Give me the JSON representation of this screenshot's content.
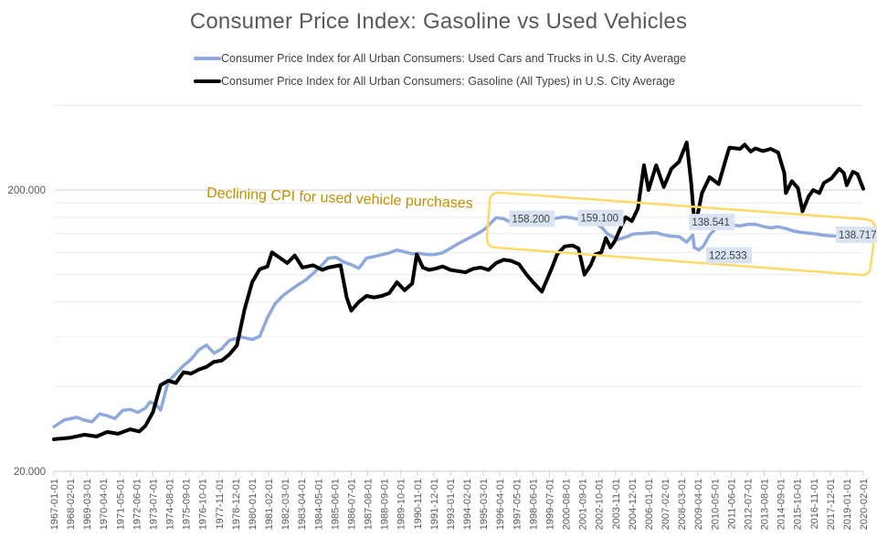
{
  "chart_data": {
    "type": "line",
    "title": "Consumer Price Index: Gasoline vs Used Vehicles",
    "xlabel": "",
    "ylabel": "",
    "yscale": "log",
    "ylim": [
      20,
      400
    ],
    "yticks": [
      {
        "value": 20,
        "label": "20.000"
      },
      {
        "value": 200,
        "label": "200.000"
      }
    ],
    "minor_gridlines": [
      40,
      60,
      80,
      100,
      120,
      140,
      160,
      180,
      400
    ],
    "xlim": [
      1967.0,
      2020.083
    ],
    "x_tick_labels": [
      "1967-01-01",
      "1968-02-01",
      "1969-03-01",
      "1970-04-01",
      "1971-05-01",
      "1972-06-01",
      "1973-07-01",
      "1974-08-01",
      "1975-09-01",
      "1976-10-01",
      "1977-11-01",
      "1978-12-01",
      "1980-01-01",
      "1981-02-01",
      "1982-03-01",
      "1983-04-01",
      "1984-05-01",
      "1985-06-01",
      "1986-07-01",
      "1987-08-01",
      "1988-09-01",
      "1989-10-01",
      "1990-11-01",
      "1991-12-01",
      "1993-01-01",
      "1994-02-01",
      "1995-03-01",
      "1996-04-01",
      "1997-05-01",
      "1998-06-01",
      "1999-07-01",
      "2000-08-01",
      "2001-09-01",
      "2002-10-01",
      "2003-11-01",
      "2004-12-01",
      "2006-01-01",
      "2007-02-01",
      "2008-03-01",
      "2009-04-01",
      "2010-05-01",
      "2011-06-01",
      "2012-07-01",
      "2013-08-01",
      "2014-09-01",
      "2015-10-01",
      "2016-11-01",
      "2017-12-01",
      "2019-01-01",
      "2020-02-01"
    ],
    "grid": true,
    "legend_position": "top",
    "series": [
      {
        "name": "Consumer Price Index for All Urban Consumers: Used Cars and Trucks in U.S. City Average",
        "color": "#8ea9db",
        "points": [
          [
            1967.0,
            28.8
          ],
          [
            1967.7,
            30.5
          ],
          [
            1968.5,
            31.1
          ],
          [
            1969.0,
            30.4
          ],
          [
            1969.5,
            30.0
          ],
          [
            1970.0,
            32.0
          ],
          [
            1970.5,
            31.5
          ],
          [
            1971.0,
            30.8
          ],
          [
            1971.5,
            32.9
          ],
          [
            1972.0,
            33.2
          ],
          [
            1972.5,
            32.4
          ],
          [
            1973.0,
            33.5
          ],
          [
            1973.3,
            35.3
          ],
          [
            1973.7,
            34.6
          ],
          [
            1974.0,
            33.0
          ],
          [
            1974.5,
            41.7
          ],
          [
            1975.0,
            44.5
          ],
          [
            1975.5,
            47.5
          ],
          [
            1976.0,
            50.0
          ],
          [
            1976.5,
            54.0
          ],
          [
            1977.0,
            56.2
          ],
          [
            1977.5,
            52.6
          ],
          [
            1978.0,
            54.5
          ],
          [
            1978.5,
            58.4
          ],
          [
            1979.3,
            60.0
          ],
          [
            1980.0,
            58.8
          ],
          [
            1980.5,
            60.4
          ],
          [
            1981.0,
            70.2
          ],
          [
            1981.5,
            78.8
          ],
          [
            1982.0,
            84.0
          ],
          [
            1982.5,
            88.1
          ],
          [
            1983.0,
            92.0
          ],
          [
            1983.5,
            95.6
          ],
          [
            1984.0,
            101.0
          ],
          [
            1984.5,
            107.0
          ],
          [
            1985.0,
            114.5
          ],
          [
            1985.5,
            115.3
          ],
          [
            1986.0,
            111.0
          ],
          [
            1986.5,
            108.6
          ],
          [
            1987.0,
            105.3
          ],
          [
            1987.5,
            114.5
          ],
          [
            1988.0,
            116.0
          ],
          [
            1988.5,
            117.8
          ],
          [
            1989.0,
            119.5
          ],
          [
            1989.5,
            122.4
          ],
          [
            1990.0,
            120.5
          ],
          [
            1990.5,
            118.6
          ],
          [
            1991.0,
            119.0
          ],
          [
            1991.5,
            117.8
          ],
          [
            1992.0,
            118.0
          ],
          [
            1992.5,
            119.7
          ],
          [
            1993.0,
            124.0
          ],
          [
            1993.5,
            128.8
          ],
          [
            1994.0,
            133.0
          ],
          [
            1994.5,
            137.4
          ],
          [
            1995.0,
            142.0
          ],
          [
            1995.3,
            145.9
          ],
          [
            1996.0,
            159.3
          ],
          [
            1996.5,
            158.2
          ],
          [
            1997.0,
            153.0
          ],
          [
            1997.5,
            151.1
          ],
          [
            1998.0,
            152.0
          ],
          [
            1998.5,
            153.3
          ],
          [
            1999.0,
            155.0
          ],
          [
            1999.5,
            157.0
          ],
          [
            2000.0,
            159.0
          ],
          [
            2000.5,
            160.4
          ],
          [
            2001.0,
            159.1
          ],
          [
            2001.5,
            157.0
          ],
          [
            2002.0,
            155.0
          ],
          [
            2002.5,
            153.3
          ],
          [
            2003.0,
            146.0
          ],
          [
            2003.3,
            139.6
          ],
          [
            2004.0,
            133.4
          ],
          [
            2004.5,
            136.0
          ],
          [
            2005.0,
            139.6
          ],
          [
            2005.5,
            140.0
          ],
          [
            2006.0,
            140.6
          ],
          [
            2006.5,
            141.0
          ],
          [
            2007.0,
            138.5
          ],
          [
            2007.5,
            137.0
          ],
          [
            2008.0,
            136.5
          ],
          [
            2008.5,
            130.5
          ],
          [
            2008.9,
            138.5
          ],
          [
            2009.0,
            124.9
          ],
          [
            2009.3,
            122.5
          ],
          [
            2009.6,
            126.3
          ],
          [
            2010.0,
            138.5
          ],
          [
            2010.5,
            148.0
          ],
          [
            2011.0,
            152.4
          ],
          [
            2011.5,
            150.0
          ],
          [
            2012.0,
            149.1
          ],
          [
            2012.5,
            151.0
          ],
          [
            2013.0,
            151.1
          ],
          [
            2013.5,
            148.5
          ],
          [
            2014.0,
            146.6
          ],
          [
            2014.5,
            148.0
          ],
          [
            2015.0,
            145.9
          ],
          [
            2015.5,
            143.0
          ],
          [
            2016.0,
            141.4
          ],
          [
            2016.5,
            140.5
          ],
          [
            2017.0,
            139.6
          ],
          [
            2017.5,
            138.0
          ],
          [
            2018.0,
            137.4
          ],
          [
            2018.5,
            137.0
          ],
          [
            2019.0,
            138.5
          ],
          [
            2019.5,
            138.0
          ],
          [
            2020.083,
            138.717
          ]
        ],
        "data_labels": [
          {
            "x": 1996.5,
            "value": 158.2,
            "label": "158.200"
          },
          {
            "x": 2001.0,
            "value": 159.1,
            "label": "159.100"
          },
          {
            "x": 2008.9,
            "value": 138.541,
            "label": "138.541"
          },
          {
            "x": 2009.3,
            "value": 122.533,
            "label": "122.533"
          },
          {
            "x": 2020.083,
            "value": 138.717,
            "label": "138.717"
          }
        ]
      },
      {
        "name": "Consumer Price Index for All Urban Consumers: Gasoline (All Types) in U.S. City Average",
        "color": "#000000",
        "points": [
          [
            1967.0,
            26.0
          ],
          [
            1968.0,
            26.3
          ],
          [
            1969.0,
            27.0
          ],
          [
            1969.8,
            26.6
          ],
          [
            1970.5,
            27.6
          ],
          [
            1971.2,
            27.2
          ],
          [
            1972.0,
            28.2
          ],
          [
            1972.6,
            27.7
          ],
          [
            1973.0,
            29.0
          ],
          [
            1973.5,
            32.5
          ],
          [
            1974.0,
            40.5
          ],
          [
            1974.5,
            42.0
          ],
          [
            1975.0,
            41.2
          ],
          [
            1975.5,
            45.0
          ],
          [
            1976.0,
            44.5
          ],
          [
            1976.5,
            46.0
          ],
          [
            1977.0,
            47.0
          ],
          [
            1977.5,
            49.0
          ],
          [
            1978.0,
            49.5
          ],
          [
            1978.5,
            52.0
          ],
          [
            1979.0,
            56.0
          ],
          [
            1979.5,
            75.0
          ],
          [
            1980.0,
            94.0
          ],
          [
            1980.5,
            104.5
          ],
          [
            1981.0,
            107.0
          ],
          [
            1981.3,
            120.0
          ],
          [
            1981.8,
            115.0
          ],
          [
            1982.3,
            110.0
          ],
          [
            1982.8,
            117.0
          ],
          [
            1983.3,
            106.0
          ],
          [
            1984.0,
            108.0
          ],
          [
            1984.6,
            104.0
          ],
          [
            1985.0,
            106.0
          ],
          [
            1985.8,
            108.0
          ],
          [
            1986.2,
            83.0
          ],
          [
            1986.5,
            74.5
          ],
          [
            1987.0,
            80.0
          ],
          [
            1987.5,
            84.0
          ],
          [
            1988.0,
            83.0
          ],
          [
            1988.5,
            84.0
          ],
          [
            1989.0,
            86.0
          ],
          [
            1989.5,
            94.0
          ],
          [
            1990.0,
            88.0
          ],
          [
            1990.5,
            93.0
          ],
          [
            1990.8,
            118.0
          ],
          [
            1991.2,
            106.0
          ],
          [
            1991.6,
            104.0
          ],
          [
            1992.0,
            105.0
          ],
          [
            1992.5,
            107.0
          ],
          [
            1993.0,
            104.0
          ],
          [
            1993.5,
            103.0
          ],
          [
            1994.0,
            102.0
          ],
          [
            1994.5,
            105.0
          ],
          [
            1995.0,
            106.0
          ],
          [
            1995.5,
            104.0
          ],
          [
            1996.0,
            110.0
          ],
          [
            1996.5,
            113.0
          ],
          [
            1997.0,
            112.0
          ],
          [
            1997.5,
            109.0
          ],
          [
            1998.0,
            100.0
          ],
          [
            1998.5,
            93.0
          ],
          [
            1999.0,
            87.0
          ],
          [
            1999.3,
            95.0
          ],
          [
            1999.7,
            107.0
          ],
          [
            2000.0,
            118.0
          ],
          [
            2000.5,
            126.0
          ],
          [
            2001.0,
            127.0
          ],
          [
            2001.4,
            124.0
          ],
          [
            2001.8,
            100.0
          ],
          [
            2002.2,
            108.0
          ],
          [
            2002.5,
            118.0
          ],
          [
            2002.9,
            120.0
          ],
          [
            2003.2,
            135.0
          ],
          [
            2003.5,
            125.0
          ],
          [
            2003.8,
            132.0
          ],
          [
            2004.2,
            148.0
          ],
          [
            2004.5,
            160.0
          ],
          [
            2004.9,
            155.0
          ],
          [
            2005.3,
            172.0
          ],
          [
            2005.7,
            245.0
          ],
          [
            2006.0,
            200.0
          ],
          [
            2006.5,
            245.0
          ],
          [
            2007.0,
            205.0
          ],
          [
            2007.5,
            238.0
          ],
          [
            2008.0,
            252.0
          ],
          [
            2008.5,
            295.0
          ],
          [
            2008.8,
            210.0
          ],
          [
            2009.0,
            155.0
          ],
          [
            2009.2,
            162.0
          ],
          [
            2009.5,
            195.0
          ],
          [
            2010.0,
            222.0
          ],
          [
            2010.6,
            210.0
          ],
          [
            2011.0,
            250.0
          ],
          [
            2011.3,
            283.0
          ],
          [
            2012.0,
            280.0
          ],
          [
            2012.3,
            290.0
          ],
          [
            2012.7,
            274.0
          ],
          [
            2013.0,
            281.0
          ],
          [
            2013.5,
            275.0
          ],
          [
            2014.0,
            280.0
          ],
          [
            2014.5,
            272.0
          ],
          [
            2014.9,
            230.0
          ],
          [
            2015.0,
            195.0
          ],
          [
            2015.4,
            215.0
          ],
          [
            2015.8,
            203.0
          ],
          [
            2016.1,
            168.0
          ],
          [
            2016.5,
            190.0
          ],
          [
            2016.8,
            200.0
          ],
          [
            2017.2,
            195.0
          ],
          [
            2017.5,
            212.0
          ],
          [
            2018.0,
            220.0
          ],
          [
            2018.5,
            238.0
          ],
          [
            2018.8,
            230.0
          ],
          [
            2019.0,
            208.0
          ],
          [
            2019.4,
            232.0
          ],
          [
            2019.7,
            228.0
          ],
          [
            2020.083,
            202.0
          ]
        ]
      }
    ],
    "annotations": [
      {
        "type": "text",
        "text": "Declining CPI for used vehicle purchases",
        "color": "#bf9000"
      },
      {
        "type": "rounded-box",
        "color": "#ffd966",
        "from": [
          1995.2,
          2020.3
        ]
      }
    ]
  }
}
